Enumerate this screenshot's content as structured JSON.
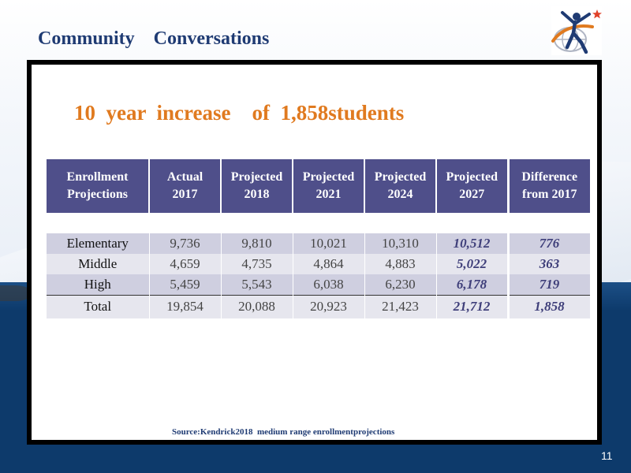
{
  "slide": {
    "title": "Community    Conversations",
    "page_number": "11"
  },
  "headline": "10  year  increase    of  1,858students",
  "table": {
    "headers": [
      "Enrollment Projections",
      "Actual 2017",
      "Projected 2018",
      "Projected 2021",
      "Projected 2024",
      "Projected 2027",
      "Difference from  2017"
    ],
    "rows": [
      {
        "label": "Elementary",
        "a2017": "9,736",
        "p2018": "9,810",
        "p2021": "10,021",
        "p2024": "10,310",
        "p2027": "10,512",
        "diff": "776"
      },
      {
        "label": "Middle",
        "a2017": "4,659",
        "p2018": "4,735",
        "p2021": "4,864",
        "p2024": "4,883",
        "p2027": "5,022",
        "diff": "363"
      },
      {
        "label": "High",
        "a2017": "5,459",
        "p2018": "5,543",
        "p2021": "6,038",
        "p2024": "6,230",
        "p2027": "6,178",
        "diff": "719"
      },
      {
        "label": "Total",
        "a2017": "19,854",
        "p2018": "20,088",
        "p2021": "20,923",
        "p2024": "21,423",
        "p2027": "21,712",
        "diff": "1,858"
      }
    ]
  },
  "source": "Source:Kendrick2018  medium range enrollmentprojections",
  "colors": {
    "title": "#1f3b73",
    "headline": "#e07a1f",
    "header_bg": "#4f4f8a",
    "bottom_band": "#0d3a6b"
  },
  "logo": {
    "icon": "figure-star-logo-icon"
  }
}
